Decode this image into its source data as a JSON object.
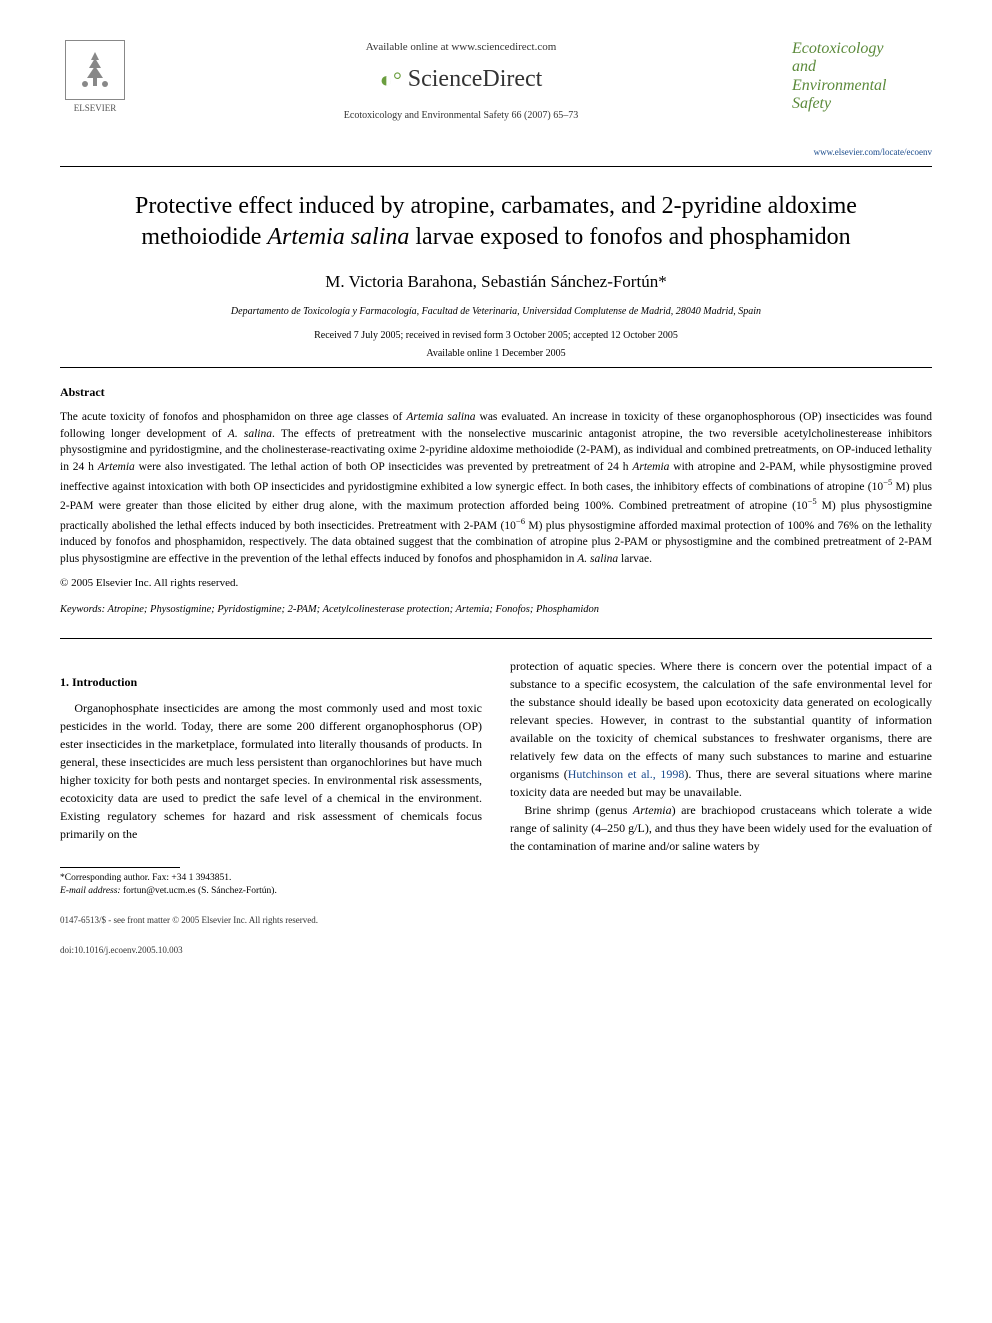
{
  "header": {
    "publisher_name": "ELSEVIER",
    "available_online": "Available online at www.sciencedirect.com",
    "sciencedirect_label": "ScienceDirect",
    "citation": "Ecotoxicology and Environmental Safety 66 (2007) 65–73",
    "journal_title_line1": "Ecotoxicology",
    "journal_title_line2": "and",
    "journal_title_line3": "Environmental",
    "journal_title_line4": "Safety",
    "journal_link": "www.elsevier.com/locate/ecoenv"
  },
  "article": {
    "title_part1": "Protective effect induced by atropine, carbamates, and 2-pyridine aldoxime methoiodide ",
    "title_italic": "Artemia salina",
    "title_part2": " larvae exposed to fonofos and phosphamidon",
    "authors": "M. Victoria Barahona, Sebastián Sánchez-Fortún*",
    "affiliation": "Departamento de Toxicología y Farmacología, Facultad de Veterinaria, Universidad Complutense de Madrid, 28040 Madrid, Spain",
    "received": "Received 7 July 2005; received in revised form 3 October 2005; accepted 12 October 2005",
    "available": "Available online 1 December 2005"
  },
  "abstract": {
    "heading": "Abstract",
    "body_html": "The acute toxicity of fonofos and phosphamidon on three age classes of <span class=\"italic\">Artemia salina</span> was evaluated. An increase in toxicity of these organophosphorous (OP) insecticides was found following longer development of <span class=\"italic\">A. salina</span>. The effects of pretreatment with the nonselective muscarinic antagonist atropine, the two reversible acetylcholinesterease inhibitors physostigmine and pyridostigmine, and the cholinesterase-reactivating oxime 2-pyridine aldoxime methoiodide (2-PAM), as individual and combined pretreatments, on OP-induced lethality in 24 h <span class=\"italic\">Artemia</span> were also investigated. The lethal action of both OP insecticides was prevented by pretreatment of 24 h <span class=\"italic\">Artemia</span> with atropine and 2-PAM, while physostigmine proved ineffective against intoxication with both OP insecticides and pyridostigmine exhibited a low synergic effect. In both cases, the inhibitory effects of combinations of atropine (10<sup>−5</sup> M) plus 2-PAM were greater than those elicited by either drug alone, with the maximum protection afforded being 100%. Combined pretreatment of atropine (10<sup>−5</sup> M) plus physostigmine practically abolished the lethal effects induced by both insecticides. Pretreatment with 2-PAM (10<sup>−6</sup> M) plus physostigmine afforded maximal protection of 100% and 76% on the lethality induced by fonofos and phosphamidon, respectively. The data obtained suggest that the combination of atropine plus 2-PAM or physostigmine and the combined pretreatment of 2-PAM plus physostigmine are effective in the prevention of the lethal effects induced by fonofos and phosphamidon in <span class=\"italic\">A. salina</span> larvae.",
    "copyright": "© 2005 Elsevier Inc. All rights reserved."
  },
  "keywords": {
    "label": "Keywords:",
    "list": "Atropine; Physostigmine; Pyridostigmine; 2-PAM; Acetylcolinesterase protection; Artemia; Fonofos; Phosphamidon"
  },
  "intro": {
    "heading": "1. Introduction",
    "col1_html": "Organophosphate insecticides are among the most commonly used and most toxic pesticides in the world. Today, there are some 200 different organophosphorus (OP) ester insecticides in the marketplace, formulated into literally thousands of products. In general, these insecticides are much less persistent than organochlorines but have much higher toxicity for both pests and nontarget species. In environmental risk assessments, ecotoxicity data are used to predict the safe level of a chemical in the environment. Existing regulatory schemes for hazard and risk assessment of chemicals focus primarily on the",
    "col2_html": "protection of aquatic species. Where there is concern over the potential impact of a substance to a specific ecosystem, the calculation of the safe environmental level for the substance should ideally be based upon ecotoxicity data generated on ecologically relevant species. However, in contrast to the substantial quantity of information available on the toxicity of chemical substances to freshwater organisms, there are relatively few data on the effects of many such substances to marine and estuarine organisms (<span class=\"ref-link\">Hutchinson et al., 1998</span>). Thus, there are several situations where marine toxicity data are needed but may be unavailable.",
    "col2_para2_html": "Brine shrimp (genus <span class=\"italic\">Artemia</span>) are brachiopod crustaceans which tolerate a wide range of salinity (4–250 g/L), and thus they have been widely used for the evaluation of the contamination of marine and/or saline waters by"
  },
  "footnotes": {
    "corresponding": "*Corresponding author. Fax: +34 1 3943851.",
    "email_label": "E-mail address:",
    "email": "fortun@vet.ucm.es (S. Sánchez-Fortún)."
  },
  "footer": {
    "issn": "0147-6513/$ - see front matter © 2005 Elsevier Inc. All rights reserved.",
    "doi": "doi:10.1016/j.ecoenv.2005.10.003"
  },
  "colors": {
    "journal_green": "#5b8a3a",
    "link_blue": "#1a4b8c",
    "text": "#000000",
    "background": "#ffffff"
  },
  "typography": {
    "body_font": "Georgia, Times New Roman, serif",
    "title_fontsize_pt": 18,
    "authors_fontsize_pt": 13,
    "abstract_fontsize_pt": 9,
    "body_fontsize_pt": 10
  }
}
